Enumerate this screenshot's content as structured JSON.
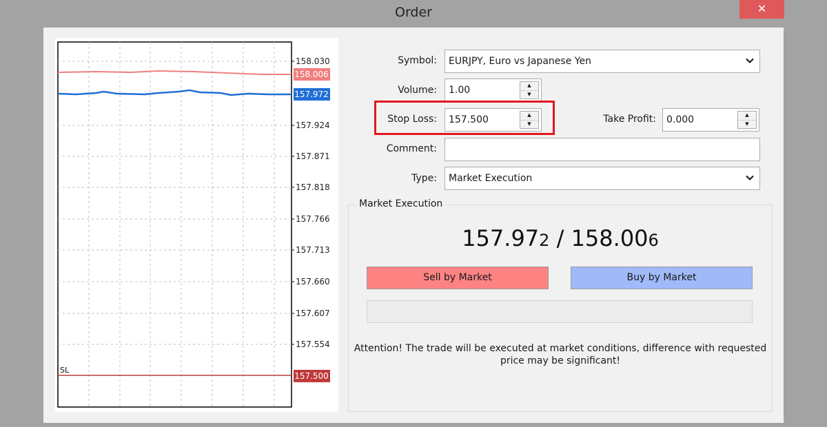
{
  "window": {
    "title": "Order",
    "close_label": "✕"
  },
  "chart": {
    "price_ticks": [
      "158.030",
      "157.924",
      "157.871",
      "157.818",
      "157.766",
      "157.713",
      "157.660",
      "157.607",
      "157.554"
    ],
    "ask_label": "158.006",
    "bid_label": "157.972",
    "sl_label": "157.500",
    "sl_marker": "SL",
    "colors": {
      "ask": "#f07e7e",
      "bid": "#1f6fd6",
      "sl": "#c0393b"
    }
  },
  "form": {
    "symbol_label": "Symbol:",
    "symbol_value": "EURJPY, Euro vs Japanese Yen",
    "volume_label": "Volume:",
    "volume_value": "1.00",
    "stop_loss_label": "Stop Loss:",
    "stop_loss_value": "157.500",
    "take_profit_label": "Take Profit:",
    "take_profit_value": "0.000",
    "comment_label": "Comment:",
    "comment_value": "",
    "type_label": "Type:",
    "type_value": "Market Execution"
  },
  "execution": {
    "group_title": "Market Execution",
    "bid_main": "157.97",
    "bid_pip": "2",
    "separator": " / ",
    "ask_main": "158.00",
    "ask_pip": "6",
    "sell_label": "Sell by Market",
    "buy_label": "Buy by Market",
    "attention_line1": "Attention! The trade will be executed at market conditions, difference with requested",
    "attention_line2": "price may be significant!"
  }
}
